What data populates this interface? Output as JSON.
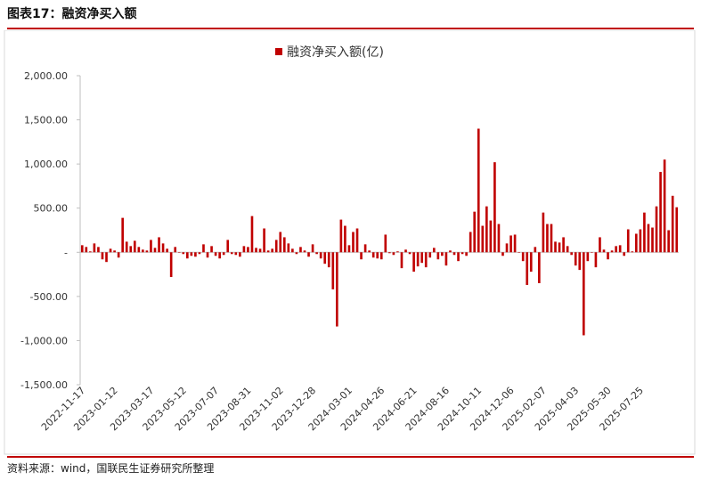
{
  "header": {
    "title": "图表17：融资净买入额"
  },
  "footer": {
    "source": "资料来源：wind，国联民生证券研究所整理"
  },
  "chart_data": {
    "type": "bar",
    "legend": {
      "label": "融资净买入额(亿)",
      "position": "top-center"
    },
    "ylim": [
      -1500,
      2000
    ],
    "yticks": [
      {
        "value": 2000,
        "label": "2,000.00"
      },
      {
        "value": 1500,
        "label": "1,500.00"
      },
      {
        "value": 1000,
        "label": "1,000.00"
      },
      {
        "value": 500,
        "label": "500.00"
      },
      {
        "value": 0,
        "label": "-"
      },
      {
        "value": -500,
        "label": "-500.00"
      },
      {
        "value": -1000,
        "label": "-1,000.00"
      },
      {
        "value": -1500,
        "label": "-1,500.00"
      }
    ],
    "xtick_labels": [
      {
        "index": 0,
        "label": "2022-11-17"
      },
      {
        "index": 8,
        "label": "2023-01-12"
      },
      {
        "index": 17,
        "label": "2023-03-17"
      },
      {
        "index": 25,
        "label": "2023-05-12"
      },
      {
        "index": 33,
        "label": "2023-07-07"
      },
      {
        "index": 41,
        "label": "2023-08-31"
      },
      {
        "index": 49,
        "label": "2023-11-02"
      },
      {
        "index": 57,
        "label": "2023-12-28"
      },
      {
        "index": 66,
        "label": "2024-03-01"
      },
      {
        "index": 74,
        "label": "2024-04-26"
      },
      {
        "index": 82,
        "label": "2024-06-21"
      },
      {
        "index": 90,
        "label": "2024-08-16"
      },
      {
        "index": 98,
        "label": "2024-10-11"
      },
      {
        "index": 106,
        "label": "2024-12-06"
      },
      {
        "index": 114,
        "label": "2025-02-07"
      },
      {
        "index": 122,
        "label": "2025-04-03"
      },
      {
        "index": 130,
        "label": "2025-05-30"
      },
      {
        "index": 138,
        "label": "2025-07-25"
      }
    ],
    "bar_color": "#c00000",
    "values": [
      80,
      60,
      10,
      100,
      60,
      -80,
      -110,
      40,
      20,
      -60,
      390,
      120,
      70,
      130,
      60,
      30,
      20,
      140,
      50,
      170,
      100,
      40,
      -280,
      60,
      0,
      -20,
      -70,
      -40,
      -50,
      -20,
      90,
      -60,
      70,
      -40,
      -70,
      -30,
      140,
      -20,
      -30,
      -50,
      70,
      60,
      410,
      50,
      40,
      270,
      20,
      40,
      140,
      230,
      170,
      100,
      40,
      -20,
      60,
      20,
      -50,
      90,
      -20,
      -70,
      -130,
      -170,
      -420,
      -840,
      370,
      300,
      80,
      230,
      270,
      -80,
      90,
      20,
      -60,
      -70,
      -80,
      200,
      -10,
      -30,
      10,
      -180,
      30,
      -20,
      -220,
      -160,
      -120,
      -170,
      -60,
      50,
      -80,
      -40,
      -150,
      20,
      -30,
      -100,
      -20,
      -40,
      230,
      460,
      1400,
      300,
      520,
      360,
      1020,
      320,
      -40,
      100,
      190,
      200,
      0,
      -100,
      -370,
      -220,
      60,
      -350,
      450,
      320,
      320,
      120,
      110,
      170,
      70,
      -30,
      -150,
      -200,
      -940,
      -100,
      0,
      -170,
      170,
      30,
      -80,
      20,
      70,
      80,
      -40,
      260,
      10,
      210,
      260,
      450,
      320,
      280,
      520,
      910,
      1050,
      250,
      640,
      510
    ]
  }
}
